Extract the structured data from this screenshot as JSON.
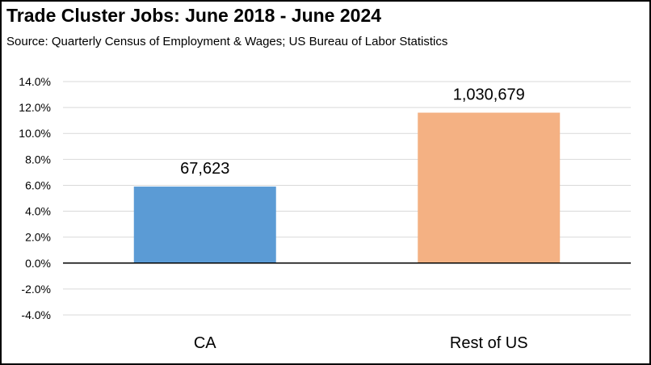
{
  "header": {
    "title": "Trade Cluster Jobs:  June 2018 - June 2024",
    "subtitle": "Source:  Quarterly Census of Employment & Wages; US Bureau of Labor Statistics"
  },
  "chart_data": {
    "type": "bar",
    "title": "Trade Cluster Jobs:  June 2018 - June 2024",
    "subtitle": "Source:  Quarterly Census of Employment & Wages; US Bureau of Labor Statistics",
    "categories": [
      "CA",
      "Rest of US"
    ],
    "values": [
      5.9,
      11.6
    ],
    "data_labels": [
      "67,623",
      "1,030,679"
    ],
    "colors": [
      "#5B9BD5",
      "#F4B183"
    ],
    "ylim": [
      -4,
      14
    ],
    "yticks": [
      14,
      12,
      10,
      8,
      6,
      4,
      2,
      0,
      -2,
      -4
    ],
    "ytick_labels": [
      "14.0%",
      "12.0%",
      "10.0%",
      "8.0%",
      "6.0%",
      "4.0%",
      "2.0%",
      "0.0%",
      "-2.0%",
      "-4.0%"
    ],
    "xlabel": "",
    "ylabel": "",
    "grid": true,
    "legend": "none"
  }
}
